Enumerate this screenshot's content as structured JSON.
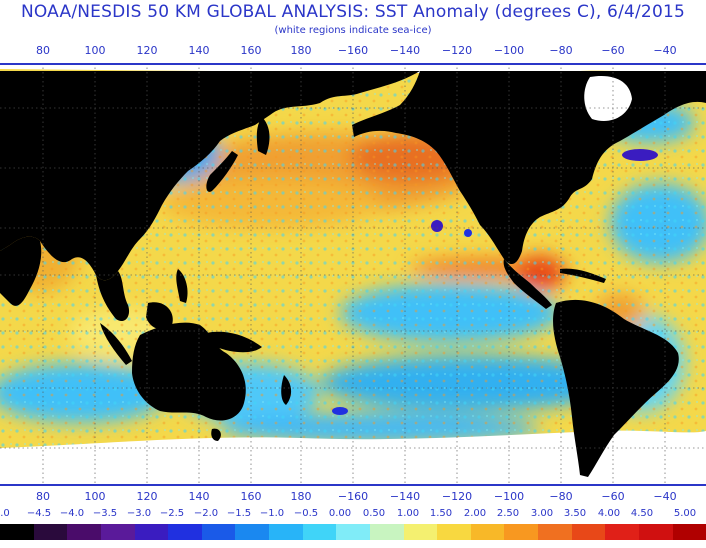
{
  "title": "NOAA/NESDIS 50 KM GLOBAL ANALYSIS: SST Anomaly (degrees C), 6/4/2015",
  "subtitle": "(white regions indicate sea-ice)",
  "longitude_labels": [
    "80",
    "100",
    "120",
    "140",
    "160",
    "180",
    "−160",
    "−140",
    "−120",
    "−100",
    "−80",
    "−60",
    "−40"
  ],
  "legend": {
    "labels": [
      ".0",
      "−4.5",
      "−4.0",
      "−3.5",
      "−3.0",
      "−2.5",
      "−2.0",
      "−1.5",
      "−1.0",
      "−0.5",
      "0.00",
      "0.50",
      "1.00",
      "1.50",
      "2.00",
      "2.50",
      "3.00",
      "3.50",
      "4.00",
      "4.50",
      "5.00"
    ],
    "colors": [
      "#000000",
      "#2a0a3c",
      "#4a0c6a",
      "#5a1a9a",
      "#3a1cc0",
      "#2030e0",
      "#1a5ae8",
      "#1a88f0",
      "#28b4f8",
      "#40d4f8",
      "#80ecf8",
      "#c8f4c0",
      "#f4f070",
      "#f8d840",
      "#f8b828",
      "#f89820",
      "#f07020",
      "#e84818",
      "#e02018",
      "#d01010",
      "#b00000"
    ]
  },
  "colors": {
    "land": "#000000",
    "sea_ice": "#ffffff",
    "ocean_base": "#f4d84a",
    "text": "#2b36c8"
  }
}
